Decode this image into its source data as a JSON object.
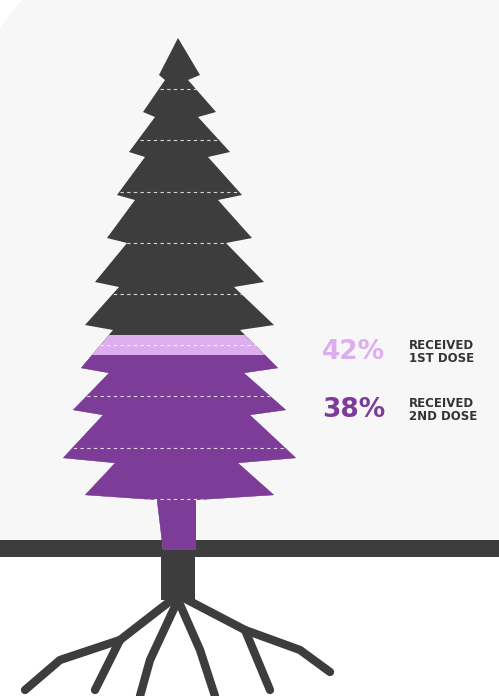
{
  "chart_data": {
    "type": "pictograph",
    "series": [
      {
        "name": "RECEIVED 1ST DOSE",
        "color": "#dcaef0",
        "values": [
          42
        ],
        "value_labels": [
          "42%"
        ]
      },
      {
        "name": "RECEIVED 2ND DOSE",
        "color": "#7d3c98",
        "values": [
          38
        ],
        "value_labels": [
          "38%"
        ]
      }
    ],
    "ylim": [
      0,
      100
    ],
    "yticks": [
      0,
      10,
      20,
      30,
      40,
      50,
      60,
      70,
      80,
      90,
      100
    ],
    "grid": true,
    "data_labels": true,
    "tick_labels": false
  }
}
